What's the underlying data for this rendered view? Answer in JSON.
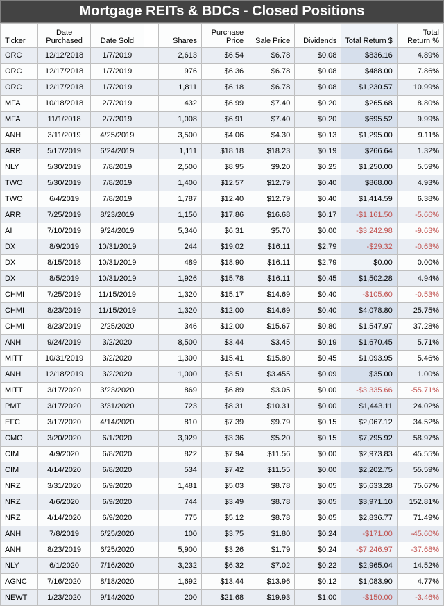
{
  "title": "Mortgage REITs & BDCs - Closed Positions",
  "columns": {
    "ticker": "Ticker",
    "date_purchased": "Date Purchased",
    "date_sold": "Date Sold",
    "shares": "Shares",
    "purchase_price": "Purchase Price",
    "sale_price": "Sale Price",
    "dividends": "Dividends",
    "total_return_d": "Total Return $",
    "total_return_p": "Total Return %"
  },
  "colors": {
    "header_bg": "#434343",
    "header_text": "#ffffff",
    "row_odd": "#e9edf3",
    "row_even": "#fcfdfd",
    "highlight_odd": "#d6dfec",
    "highlight_even": "#eff3f8",
    "negative": "#c0504d",
    "border": "#bfbfbf"
  },
  "rows": [
    {
      "ticker": "ORC",
      "dp": "12/12/2018",
      "ds": "1/7/2019",
      "sh": "2,613",
      "pp": "$6.54",
      "sp": "$6.78",
      "div": "$0.08",
      "trd": "$836.16",
      "trp": "4.89%",
      "neg": false
    },
    {
      "ticker": "ORC",
      "dp": "12/17/2018",
      "ds": "1/7/2019",
      "sh": "976",
      "pp": "$6.36",
      "sp": "$6.78",
      "div": "$0.08",
      "trd": "$488.00",
      "trp": "7.86%",
      "neg": false
    },
    {
      "ticker": "ORC",
      "dp": "12/17/2018",
      "ds": "1/7/2019",
      "sh": "1,811",
      "pp": "$6.18",
      "sp": "$6.78",
      "div": "$0.08",
      "trd": "$1,230.57",
      "trp": "10.99%",
      "neg": false
    },
    {
      "ticker": "MFA",
      "dp": "10/18/2018",
      "ds": "2/7/2019",
      "sh": "432",
      "pp": "$6.99",
      "sp": "$7.40",
      "div": "$0.20",
      "trd": "$265.68",
      "trp": "8.80%",
      "neg": false
    },
    {
      "ticker": "MFA",
      "dp": "11/1/2018",
      "ds": "2/7/2019",
      "sh": "1,008",
      "pp": "$6.91",
      "sp": "$7.40",
      "div": "$0.20",
      "trd": "$695.52",
      "trp": "9.99%",
      "neg": false
    },
    {
      "ticker": "ANH",
      "dp": "3/11/2019",
      "ds": "4/25/2019",
      "sh": "3,500",
      "pp": "$4.06",
      "sp": "$4.30",
      "div": "$0.13",
      "trd": "$1,295.00",
      "trp": "9.11%",
      "neg": false
    },
    {
      "ticker": "ARR",
      "dp": "5/17/2019",
      "ds": "6/24/2019",
      "sh": "1,111",
      "pp": "$18.18",
      "sp": "$18.23",
      "div": "$0.19",
      "trd": "$266.64",
      "trp": "1.32%",
      "neg": false
    },
    {
      "ticker": "NLY",
      "dp": "5/30/2019",
      "ds": "7/8/2019",
      "sh": "2,500",
      "pp": "$8.95",
      "sp": "$9.20",
      "div": "$0.25",
      "trd": "$1,250.00",
      "trp": "5.59%",
      "neg": false
    },
    {
      "ticker": "TWO",
      "dp": "5/30/2019",
      "ds": "7/8/2019",
      "sh": "1,400",
      "pp": "$12.57",
      "sp": "$12.79",
      "div": "$0.40",
      "trd": "$868.00",
      "trp": "4.93%",
      "neg": false
    },
    {
      "ticker": "TWO",
      "dp": "6/4/2019",
      "ds": "7/8/2019",
      "sh": "1,787",
      "pp": "$12.40",
      "sp": "$12.79",
      "div": "$0.40",
      "trd": "$1,414.59",
      "trp": "6.38%",
      "neg": false
    },
    {
      "ticker": "ARR",
      "dp": "7/25/2019",
      "ds": "8/23/2019",
      "sh": "1,150",
      "pp": "$17.86",
      "sp": "$16.68",
      "div": "$0.17",
      "trd": "-$1,161.50",
      "trp": "-5.66%",
      "neg": true
    },
    {
      "ticker": "AI",
      "dp": "7/10/2019",
      "ds": "9/24/2019",
      "sh": "5,340",
      "pp": "$6.31",
      "sp": "$5.70",
      "div": "$0.00",
      "trd": "-$3,242.98",
      "trp": "-9.63%",
      "neg": true
    },
    {
      "ticker": "DX",
      "dp": "8/9/2019",
      "ds": "10/31/2019",
      "sh": "244",
      "pp": "$19.02",
      "sp": "$16.11",
      "div": "$2.79",
      "trd": "-$29.32",
      "trp": "-0.63%",
      "neg": true
    },
    {
      "ticker": "DX",
      "dp": "8/15/2018",
      "ds": "10/31/2019",
      "sh": "489",
      "pp": "$18.90",
      "sp": "$16.11",
      "div": "$2.79",
      "trd": "$0.00",
      "trp": "0.00%",
      "neg": false
    },
    {
      "ticker": "DX",
      "dp": "8/5/2019",
      "ds": "10/31/2019",
      "sh": "1,926",
      "pp": "$15.78",
      "sp": "$16.11",
      "div": "$0.45",
      "trd": "$1,502.28",
      "trp": "4.94%",
      "neg": false
    },
    {
      "ticker": "CHMI",
      "dp": "7/25/2019",
      "ds": "11/15/2019",
      "sh": "1,320",
      "pp": "$15.17",
      "sp": "$14.69",
      "div": "$0.40",
      "trd": "-$105.60",
      "trp": "-0.53%",
      "neg": true
    },
    {
      "ticker": "CHMI",
      "dp": "8/23/2019",
      "ds": "11/15/2019",
      "sh": "1,320",
      "pp": "$12.00",
      "sp": "$14.69",
      "div": "$0.40",
      "trd": "$4,078.80",
      "trp": "25.75%",
      "neg": false
    },
    {
      "ticker": "CHMI",
      "dp": "8/23/2019",
      "ds": "2/25/2020",
      "sh": "346",
      "pp": "$12.00",
      "sp": "$15.67",
      "div": "$0.80",
      "trd": "$1,547.97",
      "trp": "37.28%",
      "neg": false
    },
    {
      "ticker": "ANH",
      "dp": "9/24/2019",
      "ds": "3/2/2020",
      "sh": "8,500",
      "pp": "$3.44",
      "sp": "$3.45",
      "div": "$0.19",
      "trd": "$1,670.45",
      "trp": "5.71%",
      "neg": false
    },
    {
      "ticker": "MITT",
      "dp": "10/31/2019",
      "ds": "3/2/2020",
      "sh": "1,300",
      "pp": "$15.41",
      "sp": "$15.80",
      "div": "$0.45",
      "trd": "$1,093.95",
      "trp": "5.46%",
      "neg": false
    },
    {
      "ticker": "ANH",
      "dp": "12/18/2019",
      "ds": "3/2/2020",
      "sh": "1,000",
      "pp": "$3.51",
      "sp": "$3.455",
      "div": "$0.09",
      "trd": "$35.00",
      "trp": "1.00%",
      "neg": false
    },
    {
      "ticker": "MITT",
      "dp": "3/17/2020",
      "ds": "3/23/2020",
      "sh": "869",
      "pp": "$6.89",
      "sp": "$3.05",
      "div": "$0.00",
      "trd": "-$3,335.66",
      "trp": "-55.71%",
      "neg": true
    },
    {
      "ticker": "PMT",
      "dp": "3/17/2020",
      "ds": "3/31/2020",
      "sh": "723",
      "pp": "$8.31",
      "sp": "$10.31",
      "div": "$0.00",
      "trd": "$1,443.11",
      "trp": "24.02%",
      "neg": false
    },
    {
      "ticker": "EFC",
      "dp": "3/17/2020",
      "ds": "4/14/2020",
      "sh": "810",
      "pp": "$7.39",
      "sp": "$9.79",
      "div": "$0.15",
      "trd": "$2,067.12",
      "trp": "34.52%",
      "neg": false
    },
    {
      "ticker": "CMO",
      "dp": "3/20/2020",
      "ds": "6/1/2020",
      "sh": "3,929",
      "pp": "$3.36",
      "sp": "$5.20",
      "div": "$0.15",
      "trd": "$7,795.92",
      "trp": "58.97%",
      "neg": false
    },
    {
      "ticker": "CIM",
      "dp": "4/9/2020",
      "ds": "6/8/2020",
      "sh": "822",
      "pp": "$7.94",
      "sp": "$11.56",
      "div": "$0.00",
      "trd": "$2,973.83",
      "trp": "45.55%",
      "neg": false
    },
    {
      "ticker": "CIM",
      "dp": "4/14/2020",
      "ds": "6/8/2020",
      "sh": "534",
      "pp": "$7.42",
      "sp": "$11.55",
      "div": "$0.00",
      "trd": "$2,202.75",
      "trp": "55.59%",
      "neg": false
    },
    {
      "ticker": "NRZ",
      "dp": "3/31/2020",
      "ds": "6/9/2020",
      "sh": "1,481",
      "pp": "$5.03",
      "sp": "$8.78",
      "div": "$0.05",
      "trd": "$5,633.28",
      "trp": "75.67%",
      "neg": false
    },
    {
      "ticker": "NRZ",
      "dp": "4/6/2020",
      "ds": "6/9/2020",
      "sh": "744",
      "pp": "$3.49",
      "sp": "$8.78",
      "div": "$0.05",
      "trd": "$3,971.10",
      "trp": "152.81%",
      "neg": false
    },
    {
      "ticker": "NRZ",
      "dp": "4/14/2020",
      "ds": "6/9/2020",
      "sh": "775",
      "pp": "$5.12",
      "sp": "$8.78",
      "div": "$0.05",
      "trd": "$2,836.77",
      "trp": "71.49%",
      "neg": false
    },
    {
      "ticker": "ANH",
      "dp": "7/8/2019",
      "ds": "6/25/2020",
      "sh": "100",
      "pp": "$3.75",
      "sp": "$1.80",
      "div": "$0.24",
      "trd": "-$171.00",
      "trp": "-45.60%",
      "neg": true
    },
    {
      "ticker": "ANH",
      "dp": "8/23/2019",
      "ds": "6/25/2020",
      "sh": "5,900",
      "pp": "$3.26",
      "sp": "$1.79",
      "div": "$0.24",
      "trd": "-$7,246.97",
      "trp": "-37.68%",
      "neg": true
    },
    {
      "ticker": "NLY",
      "dp": "6/1/2020",
      "ds": "7/16/2020",
      "sh": "3,232",
      "pp": "$6.32",
      "sp": "$7.02",
      "div": "$0.22",
      "trd": "$2,965.04",
      "trp": "14.52%",
      "neg": false
    },
    {
      "ticker": "AGNC",
      "dp": "7/16/2020",
      "ds": "8/18/2020",
      "sh": "1,692",
      "pp": "$13.44",
      "sp": "$13.96",
      "div": "$0.12",
      "trd": "$1,083.90",
      "trp": "4.77%",
      "neg": false
    },
    {
      "ticker": "NEWT",
      "dp": "1/23/2020",
      "ds": "9/14/2020",
      "sh": "200",
      "pp": "$21.68",
      "sp": "$19.93",
      "div": "$1.00",
      "trd": "-$150.00",
      "trp": "-3.46%",
      "neg": true
    }
  ]
}
